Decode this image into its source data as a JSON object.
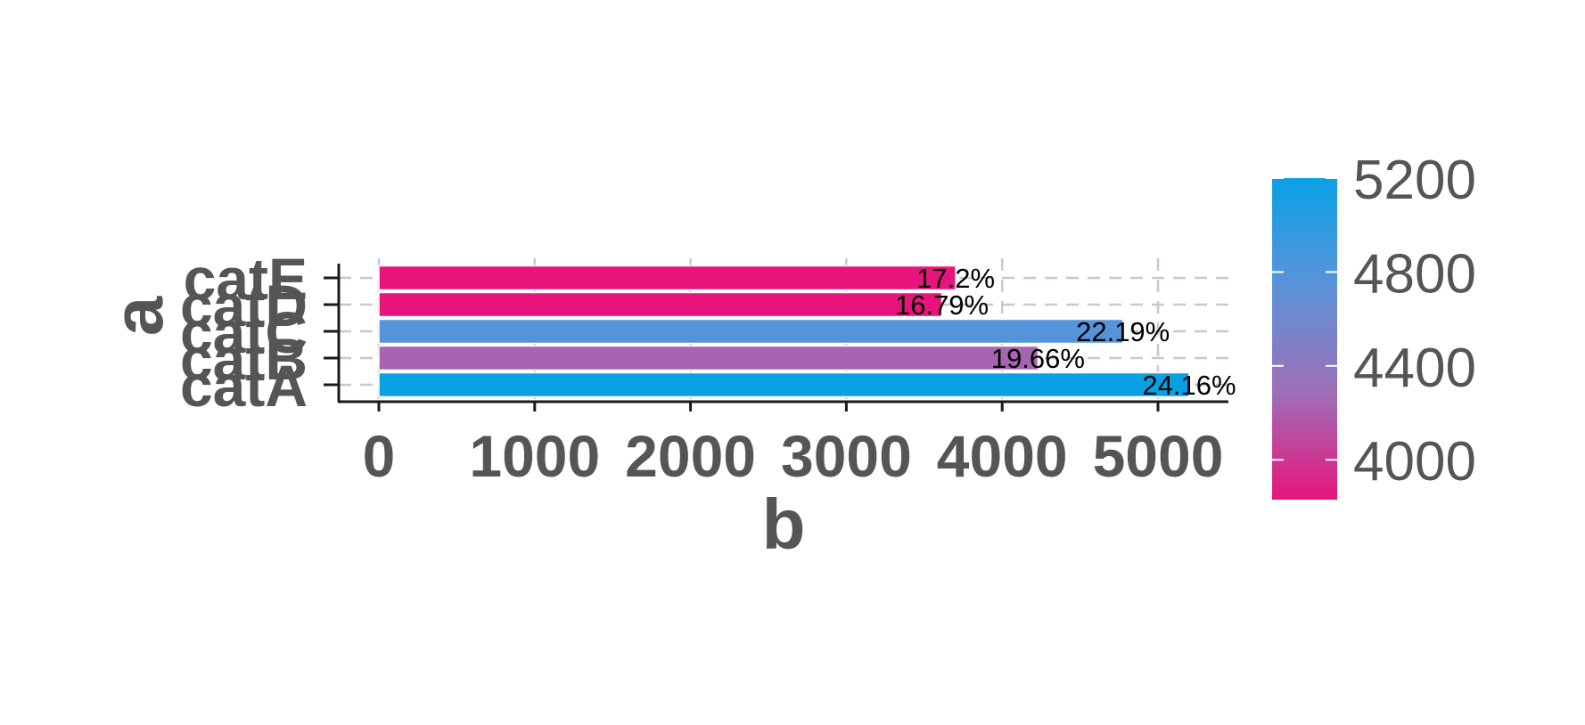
{
  "chart_data": {
    "type": "bar",
    "orientation": "horizontal",
    "title": "",
    "xlabel": "b",
    "ylabel": "a",
    "categories": [
      "catA",
      "catB",
      "catC",
      "catD",
      "catE"
    ],
    "values": [
      5200,
      4230,
      4775,
      3613,
      3702
    ],
    "bar_labels": [
      "24.16%",
      "19.66%",
      "22.19%",
      "16.79%",
      "17.2%"
    ],
    "xlim": [
      -250,
      5450
    ],
    "x_ticks": [
      0,
      1000,
      2000,
      3000,
      4000,
      5000
    ],
    "x_tick_labels": [
      "0",
      "1000",
      "2000",
      "3000",
      "4000",
      "5000"
    ],
    "grid": true,
    "colorbar": {
      "range": [
        3830,
        5200
      ],
      "ticks": [
        4000,
        4400,
        4800,
        5200
      ],
      "tick_labels": [
        "4000",
        "4400",
        "4800",
        "5200"
      ],
      "colors": [
        "#e7157b",
        "#9e6fb8",
        "#5b93d9",
        "#0aa1e4"
      ],
      "placement": "right"
    }
  }
}
